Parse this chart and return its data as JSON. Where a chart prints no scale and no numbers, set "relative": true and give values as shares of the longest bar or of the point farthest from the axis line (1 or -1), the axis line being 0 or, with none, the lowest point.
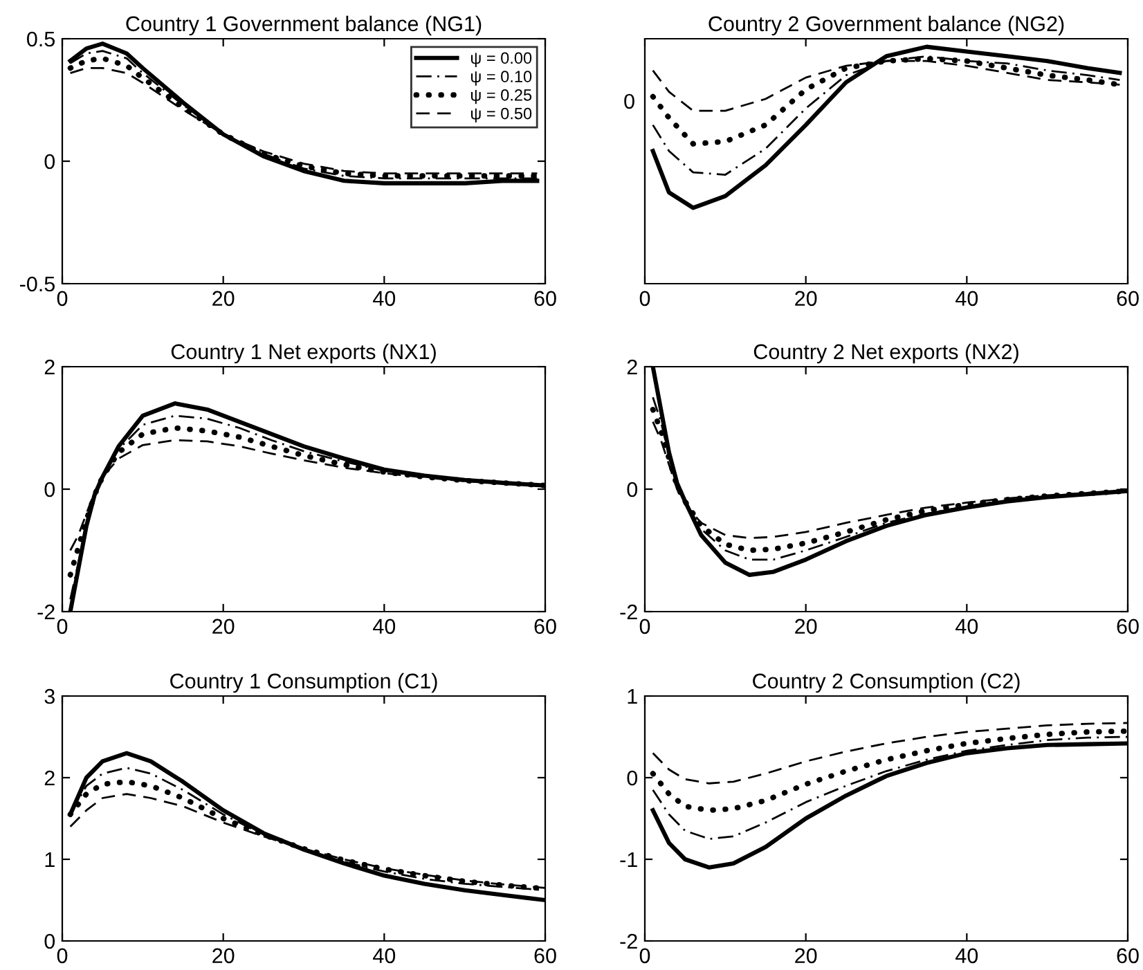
{
  "chart_data": [
    {
      "type": "line",
      "title": "Country 1 Government balance (NG1)",
      "x": [
        1,
        3,
        5,
        8,
        10,
        15,
        20,
        25,
        30,
        35,
        40,
        45,
        50,
        55,
        59
      ],
      "xlim": [
        0,
        60
      ],
      "xticks": [
        0,
        20,
        40,
        60
      ],
      "ylim": [
        -0.5,
        0.5
      ],
      "yticks": [
        -0.5,
        0,
        0.5
      ],
      "legend": "top right",
      "series": [
        {
          "name": "ψ = 0.00",
          "color": "#000000",
          "line_style": "solid",
          "values": [
            0.41,
            0.46,
            0.48,
            0.44,
            0.38,
            0.24,
            0.11,
            0.02,
            -0.04,
            -0.08,
            -0.09,
            -0.09,
            -0.09,
            -0.08,
            -0.08
          ]
        },
        {
          "name": "ψ = 0.10",
          "color": "#000000",
          "line_style": "dashdot",
          "values": [
            0.4,
            0.44,
            0.45,
            0.42,
            0.36,
            0.23,
            0.11,
            0.03,
            -0.03,
            -0.06,
            -0.07,
            -0.07,
            -0.07,
            -0.07,
            -0.07
          ]
        },
        {
          "name": "ψ = 0.25",
          "color": "#000000",
          "line_style": "dotted",
          "values": [
            0.38,
            0.41,
            0.42,
            0.39,
            0.34,
            0.22,
            0.11,
            0.03,
            -0.02,
            -0.05,
            -0.06,
            -0.06,
            -0.06,
            -0.06,
            -0.06
          ]
        },
        {
          "name": "ψ = 0.50",
          "color": "#000000",
          "line_style": "dashed",
          "values": [
            0.36,
            0.38,
            0.38,
            0.36,
            0.32,
            0.21,
            0.11,
            0.04,
            -0.01,
            -0.04,
            -0.05,
            -0.05,
            -0.05,
            -0.05,
            -0.05
          ]
        }
      ]
    },
    {
      "type": "line",
      "title": "Country 2 Government balance (NG2)",
      "relative": true,
      "x": [
        1,
        3,
        6,
        10,
        15,
        20,
        25,
        30,
        35,
        40,
        45,
        50,
        55,
        59
      ],
      "xlim": [
        0,
        60
      ],
      "xticks": [
        0,
        20,
        40,
        60
      ],
      "annotations": [
        "0"
      ],
      "series": [
        {
          "color": "#000000",
          "line_style": "solid",
          "values": [
            0.56,
            0.385,
            0.32,
            0.37,
            0.5,
            0.67,
            0.85,
            0.96,
            1,
            0.98,
            0.96,
            0.94,
            0.91,
            0.89
          ]
        },
        {
          "color": "#000000",
          "line_style": "dashdot",
          "values": [
            0.67,
            0.56,
            0.47,
            0.46,
            0.57,
            0.74,
            0.88,
            0.94,
            0.96,
            0.94,
            0.93,
            0.9,
            0.88,
            0.86
          ]
        },
        {
          "color": "#000000",
          "line_style": "dotted",
          "values": [
            0.79,
            0.7,
            0.59,
            0.6,
            0.67,
            0.82,
            0.91,
            0.94,
            0.95,
            0.94,
            0.91,
            0.88,
            0.86,
            0.84
          ]
        },
        {
          "color": "#000000",
          "line_style": "dashed",
          "values": [
            0.9,
            0.81,
            0.73,
            0.73,
            0.78,
            0.87,
            0.92,
            0.94,
            0.94,
            0.92,
            0.89,
            0.86,
            0.85,
            0.84
          ]
        }
      ]
    },
    {
      "type": "line",
      "title": "Country 1 Net exports (NX1)",
      "x": [
        1,
        2,
        3,
        4,
        5,
        7,
        10,
        14,
        18,
        22,
        26,
        30,
        35,
        40,
        45,
        50,
        55,
        60
      ],
      "xlim": [
        0,
        60
      ],
      "xticks": [
        0,
        20,
        40,
        60
      ],
      "ylim": [
        -2,
        2
      ],
      "yticks": [
        -2,
        0,
        2
      ],
      "series": [
        {
          "color": "#000000",
          "line_style": "solid",
          "values": [
            -2.0,
            -1.3,
            -0.6,
            -0.1,
            0.2,
            0.7,
            1.2,
            1.4,
            1.3,
            1.1,
            0.9,
            0.7,
            0.5,
            0.32,
            0.22,
            0.15,
            0.1,
            0.06
          ]
        },
        {
          "color": "#000000",
          "line_style": "dashdot",
          "values": [
            -1.8,
            -1.2,
            -0.6,
            -0.1,
            0.2,
            0.65,
            1.05,
            1.2,
            1.15,
            1.0,
            0.8,
            0.62,
            0.45,
            0.3,
            0.2,
            0.14,
            0.1,
            0.06
          ]
        },
        {
          "color": "#000000",
          "line_style": "dotted",
          "values": [
            -1.4,
            -0.95,
            -0.5,
            -0.1,
            0.2,
            0.6,
            0.9,
            1.0,
            0.95,
            0.85,
            0.7,
            0.55,
            0.4,
            0.28,
            0.2,
            0.14,
            0.1,
            0.06
          ]
        },
        {
          "color": "#000000",
          "line_style": "dashed",
          "values": [
            -1.0,
            -0.75,
            -0.4,
            -0.05,
            0.2,
            0.5,
            0.72,
            0.8,
            0.78,
            0.7,
            0.58,
            0.47,
            0.35,
            0.26,
            0.19,
            0.13,
            0.09,
            0.06
          ]
        }
      ]
    },
    {
      "type": "line",
      "title": "Country 2 Net exports (NX2)",
      "x": [
        1,
        2,
        3,
        4,
        5,
        7,
        10,
        13,
        16,
        20,
        25,
        30,
        35,
        40,
        45,
        50,
        55,
        60
      ],
      "xlim": [
        0,
        60
      ],
      "xticks": [
        0,
        20,
        40,
        60
      ],
      "ylim": [
        -2,
        2
      ],
      "yticks": [
        -2,
        0,
        2
      ],
      "series": [
        {
          "color": "#000000",
          "line_style": "solid",
          "values": [
            2.0,
            1.3,
            0.6,
            0.1,
            -0.2,
            -0.75,
            -1.2,
            -1.4,
            -1.35,
            -1.15,
            -0.85,
            -0.6,
            -0.42,
            -0.3,
            -0.2,
            -0.13,
            -0.08,
            -0.03
          ]
        },
        {
          "color": "#000000",
          "line_style": "dashdot",
          "values": [
            1.5,
            1.1,
            0.55,
            0.1,
            -0.2,
            -0.65,
            -1.0,
            -1.15,
            -1.15,
            -1.0,
            -0.78,
            -0.55,
            -0.4,
            -0.28,
            -0.18,
            -0.12,
            -0.08,
            -0.03
          ]
        },
        {
          "color": "#000000",
          "line_style": "dotted",
          "values": [
            1.3,
            0.95,
            0.5,
            0.05,
            -0.2,
            -0.6,
            -0.9,
            -1.0,
            -0.98,
            -0.88,
            -0.7,
            -0.5,
            -0.35,
            -0.25,
            -0.17,
            -0.11,
            -0.07,
            -0.03
          ]
        },
        {
          "color": "#000000",
          "line_style": "dashed",
          "values": [
            1.1,
            0.8,
            0.4,
            0.0,
            -0.25,
            -0.55,
            -0.75,
            -0.8,
            -0.78,
            -0.7,
            -0.55,
            -0.42,
            -0.3,
            -0.22,
            -0.15,
            -0.1,
            -0.06,
            -0.03
          ]
        }
      ]
    },
    {
      "type": "line",
      "title": "Country 1 Consumption (C1)",
      "x": [
        1,
        3,
        5,
        8,
        11,
        15,
        20,
        25,
        30,
        35,
        40,
        45,
        50,
        55,
        60
      ],
      "xlim": [
        0,
        60
      ],
      "xticks": [
        0,
        20,
        40,
        60
      ],
      "ylim": [
        0,
        3
      ],
      "yticks": [
        0,
        1,
        2,
        3
      ],
      "series": [
        {
          "color": "#000000",
          "line_style": "solid",
          "values": [
            1.55,
            2.0,
            2.2,
            2.3,
            2.2,
            1.95,
            1.6,
            1.32,
            1.12,
            0.95,
            0.8,
            0.7,
            0.62,
            0.56,
            0.5
          ]
        },
        {
          "color": "#000000",
          "line_style": "dashdot",
          "values": [
            1.55,
            1.9,
            2.05,
            2.12,
            2.05,
            1.85,
            1.55,
            1.3,
            1.12,
            0.97,
            0.85,
            0.76,
            0.7,
            0.66,
            0.62
          ]
        },
        {
          "color": "#000000",
          "line_style": "dotted",
          "values": [
            1.55,
            1.8,
            1.92,
            1.95,
            1.9,
            1.75,
            1.5,
            1.3,
            1.13,
            0.99,
            0.88,
            0.8,
            0.73,
            0.68,
            0.64
          ]
        },
        {
          "color": "#000000",
          "line_style": "dashed",
          "values": [
            1.4,
            1.6,
            1.75,
            1.8,
            1.75,
            1.65,
            1.45,
            1.28,
            1.13,
            1.0,
            0.89,
            0.81,
            0.74,
            0.69,
            0.65
          ]
        }
      ]
    },
    {
      "type": "line",
      "title": "Country 2 Consumption (C2)",
      "x": [
        1,
        3,
        5,
        8,
        11,
        15,
        20,
        25,
        30,
        35,
        40,
        45,
        50,
        55,
        60
      ],
      "xlim": [
        0,
        60
      ],
      "xticks": [
        0,
        20,
        40,
        60
      ],
      "ylim": [
        -2,
        1
      ],
      "yticks": [
        -2,
        -1,
        0,
        1
      ],
      "series": [
        {
          "color": "#000000",
          "line_style": "solid",
          "values": [
            -0.4,
            -0.8,
            -1.0,
            -1.1,
            -1.05,
            -0.85,
            -0.5,
            -0.22,
            0.02,
            0.18,
            0.3,
            0.36,
            0.4,
            0.41,
            0.42
          ]
        },
        {
          "color": "#000000",
          "line_style": "dashdot",
          "values": [
            -0.15,
            -0.45,
            -0.65,
            -0.75,
            -0.72,
            -0.55,
            -0.3,
            -0.1,
            0.08,
            0.22,
            0.33,
            0.4,
            0.46,
            0.49,
            0.5
          ]
        },
        {
          "color": "#000000",
          "line_style": "dotted",
          "values": [
            0.05,
            -0.2,
            -0.35,
            -0.4,
            -0.38,
            -0.28,
            -0.08,
            0.08,
            0.22,
            0.33,
            0.42,
            0.48,
            0.53,
            0.56,
            0.57
          ]
        },
        {
          "color": "#000000",
          "line_style": "dashed",
          "values": [
            0.3,
            0.1,
            -0.02,
            -0.07,
            -0.05,
            0.05,
            0.2,
            0.32,
            0.42,
            0.5,
            0.56,
            0.6,
            0.64,
            0.66,
            0.67
          ]
        }
      ]
    }
  ]
}
